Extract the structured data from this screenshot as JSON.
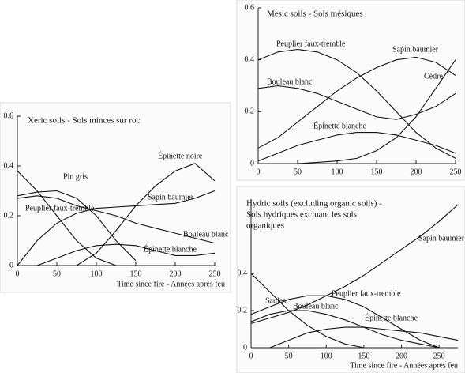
{
  "chart_data": [
    {
      "type": "line",
      "title": [
        "Xeric soils - Sols minces sur roc"
      ],
      "x_label": "Time since fire - Années après feu",
      "x": [
        0,
        25,
        50,
        75,
        100,
        125,
        150,
        175,
        200,
        225,
        250
      ],
      "xlim": [
        0,
        250
      ],
      "xticks": [
        0,
        50,
        100,
        150,
        200,
        250
      ],
      "ylim": [
        0,
        0.6
      ],
      "yticks": [
        0,
        0.2,
        0.4,
        0.6
      ],
      "series": [
        {
          "name": "Épinette noire",
          "color": "#111111",
          "values": [
            null,
            null,
            null,
            0,
            0.05,
            0.14,
            0.24,
            0.32,
            0.38,
            0.41,
            0.34
          ]
        },
        {
          "name": "Pin gris",
          "color": "#111111",
          "values": [
            0.28,
            0.295,
            0.3,
            0.27,
            0.2,
            0.1,
            0.02,
            null,
            null,
            null,
            null
          ]
        },
        {
          "name": "Sapin baumier",
          "color": "#111111",
          "values": [
            0,
            0.1,
            0.17,
            0.21,
            0.23,
            0.235,
            0.24,
            0.245,
            0.25,
            0.27,
            0.3
          ]
        },
        {
          "name": "Peuplier faux-tremble",
          "color": "#111111",
          "values": [
            0.38,
            0.3,
            0.2,
            0.1,
            0.03,
            0,
            null,
            null,
            null,
            null,
            null
          ]
        },
        {
          "name": "Bouleau blanc",
          "color": "#111111",
          "values": [
            0.27,
            0.28,
            0.27,
            0.24,
            0.22,
            0.2,
            0.17,
            0.15,
            0.13,
            0.11,
            0.09
          ]
        },
        {
          "name": "Épinette blanche",
          "color": "#111111",
          "values": [
            null,
            0,
            0.03,
            0.06,
            0.08,
            0.085,
            0.08,
            0.06,
            0.04,
            0.04,
            0.05
          ]
        }
      ]
    },
    {
      "type": "line",
      "title": [
        "Mesic soils - Sols mésiques"
      ],
      "x": [
        0,
        25,
        50,
        75,
        100,
        125,
        150,
        175,
        200,
        225,
        250
      ],
      "xlim": [
        0,
        250
      ],
      "xticks": [
        0,
        50,
        100,
        150,
        200,
        250
      ],
      "ylim": [
        0,
        0.6
      ],
      "yticks": [
        0,
        0.2,
        0.4,
        0.6
      ],
      "series": [
        {
          "name": "Peuplier faux-tremble",
          "color": "#111111",
          "values": [
            0.4,
            0.43,
            0.44,
            0.43,
            0.4,
            0.35,
            0.28,
            0.2,
            0.12,
            0.06,
            0.02
          ]
        },
        {
          "name": "Sapin baumier",
          "color": "#111111",
          "values": [
            0.06,
            0.1,
            0.16,
            0.22,
            0.28,
            0.33,
            0.37,
            0.4,
            0.41,
            0.39,
            0.34
          ]
        },
        {
          "name": "Bouleau blanc",
          "color": "#111111",
          "values": [
            0.29,
            0.3,
            0.29,
            0.27,
            0.24,
            0.21,
            0.18,
            0.17,
            0.19,
            0.22,
            0.27
          ]
        },
        {
          "name": "Cèdre",
          "color": "#111111",
          "values": [
            null,
            null,
            0,
            0.005,
            0.01,
            0.02,
            0.05,
            0.1,
            0.18,
            0.29,
            0.4
          ]
        },
        {
          "name": "Épinette blanche",
          "color": "#111111",
          "values": [
            0.01,
            0.04,
            0.07,
            0.09,
            0.11,
            0.12,
            0.12,
            0.11,
            0.09,
            0.07,
            0.04
          ]
        }
      ]
    },
    {
      "type": "line",
      "title": [
        "Hydric soils (excluding organic soils) -",
        "Sols hydriques excluant les sols",
        "organiques"
      ],
      "x_label": "Time since fire - Années après feu",
      "x": [
        0,
        25,
        50,
        75,
        100,
        125,
        150,
        175,
        200,
        225,
        250,
        275
      ],
      "xlim": [
        0,
        275
      ],
      "xticks": [
        0,
        50,
        100,
        150,
        200,
        250
      ],
      "ylim": [
        0,
        0.8
      ],
      "yticks": [
        0,
        0.2,
        0.4
      ],
      "series": [
        {
          "name": "Sapin baumier",
          "color": "#111111",
          "values": [
            0.13,
            0.16,
            0.19,
            0.23,
            0.28,
            0.33,
            0.39,
            0.46,
            0.53,
            0.6,
            0.68,
            0.77
          ]
        },
        {
          "name": "Saules",
          "color": "#111111",
          "values": [
            0.4,
            0.3,
            0.2,
            0.12,
            0.06,
            0.02,
            0,
            null,
            null,
            null,
            null,
            null
          ]
        },
        {
          "name": "Peuplier faux-tremble",
          "color": "#111111",
          "values": [
            0.18,
            0.22,
            0.26,
            0.28,
            0.28,
            0.26,
            0.22,
            0.16,
            0.1,
            0.04,
            0,
            null
          ]
        },
        {
          "name": "Bouleau blanc",
          "color": "#111111",
          "values": [
            0.14,
            0.18,
            0.2,
            0.2,
            0.18,
            0.15,
            0.11,
            0.07,
            0.04,
            0.02,
            0,
            null
          ]
        },
        {
          "name": "Épinette blanche",
          "color": "#111111",
          "values": [
            null,
            0,
            0.04,
            0.08,
            0.1,
            0.11,
            0.11,
            0.1,
            0.09,
            0.08,
            0.06,
            0.04
          ]
        }
      ]
    }
  ]
}
